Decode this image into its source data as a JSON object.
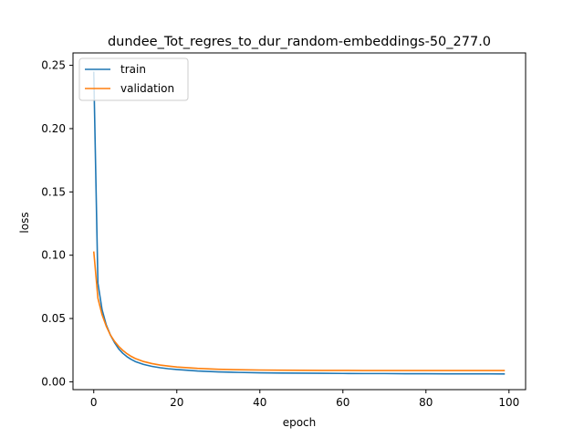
{
  "chart_data": {
    "type": "line",
    "title": "dundee_Tot_regres_to_dur_random-embeddings-50_277.0",
    "xlabel": "epoch",
    "ylabel": "loss",
    "xlim": [
      -5,
      104
    ],
    "ylim": [
      -0.0062,
      0.2598
    ],
    "xticks": [
      0,
      20,
      40,
      60,
      80,
      100
    ],
    "yticks": [
      0.0,
      0.05,
      0.1,
      0.15,
      0.2,
      0.25
    ],
    "xtick_labels": [
      "0",
      "20",
      "40",
      "60",
      "80",
      "100"
    ],
    "ytick_labels": [
      "0.00",
      "0.05",
      "0.10",
      "0.15",
      "0.20",
      "0.25"
    ],
    "grid": false,
    "legend_position": "top-left",
    "series": [
      {
        "name": "train",
        "color": "#1f77b4",
        "x": [
          0,
          1,
          2,
          3,
          4,
          5,
          6,
          7,
          8,
          9,
          10,
          12,
          14,
          16,
          18,
          20,
          25,
          30,
          35,
          40,
          45,
          50,
          55,
          60,
          65,
          70,
          75,
          80,
          85,
          90,
          95,
          99
        ],
        "y": [
          0.245,
          0.078,
          0.057,
          0.045,
          0.037,
          0.031,
          0.026,
          0.0225,
          0.0198,
          0.0177,
          0.016,
          0.0137,
          0.0122,
          0.0111,
          0.0103,
          0.0097,
          0.0085,
          0.0078,
          0.0074,
          0.0071,
          0.0069,
          0.0068,
          0.0067,
          0.0066,
          0.0065,
          0.0065,
          0.0064,
          0.0064,
          0.0063,
          0.0063,
          0.0063,
          0.0062
        ]
      },
      {
        "name": "validation",
        "color": "#ff7f0e",
        "x": [
          0,
          1,
          2,
          3,
          4,
          5,
          6,
          7,
          8,
          9,
          10,
          12,
          14,
          16,
          18,
          20,
          25,
          30,
          35,
          40,
          45,
          50,
          55,
          60,
          65,
          70,
          75,
          80,
          85,
          90,
          95,
          99
        ],
        "y": [
          0.103,
          0.066,
          0.053,
          0.044,
          0.037,
          0.032,
          0.028,
          0.0248,
          0.0222,
          0.0201,
          0.0184,
          0.016,
          0.0144,
          0.0132,
          0.0124,
          0.0117,
          0.0106,
          0.0099,
          0.0095,
          0.0093,
          0.0092,
          0.0091,
          0.009,
          0.009,
          0.0089,
          0.0089,
          0.0089,
          0.0089,
          0.0089,
          0.0089,
          0.0089,
          0.0089
        ]
      }
    ]
  }
}
